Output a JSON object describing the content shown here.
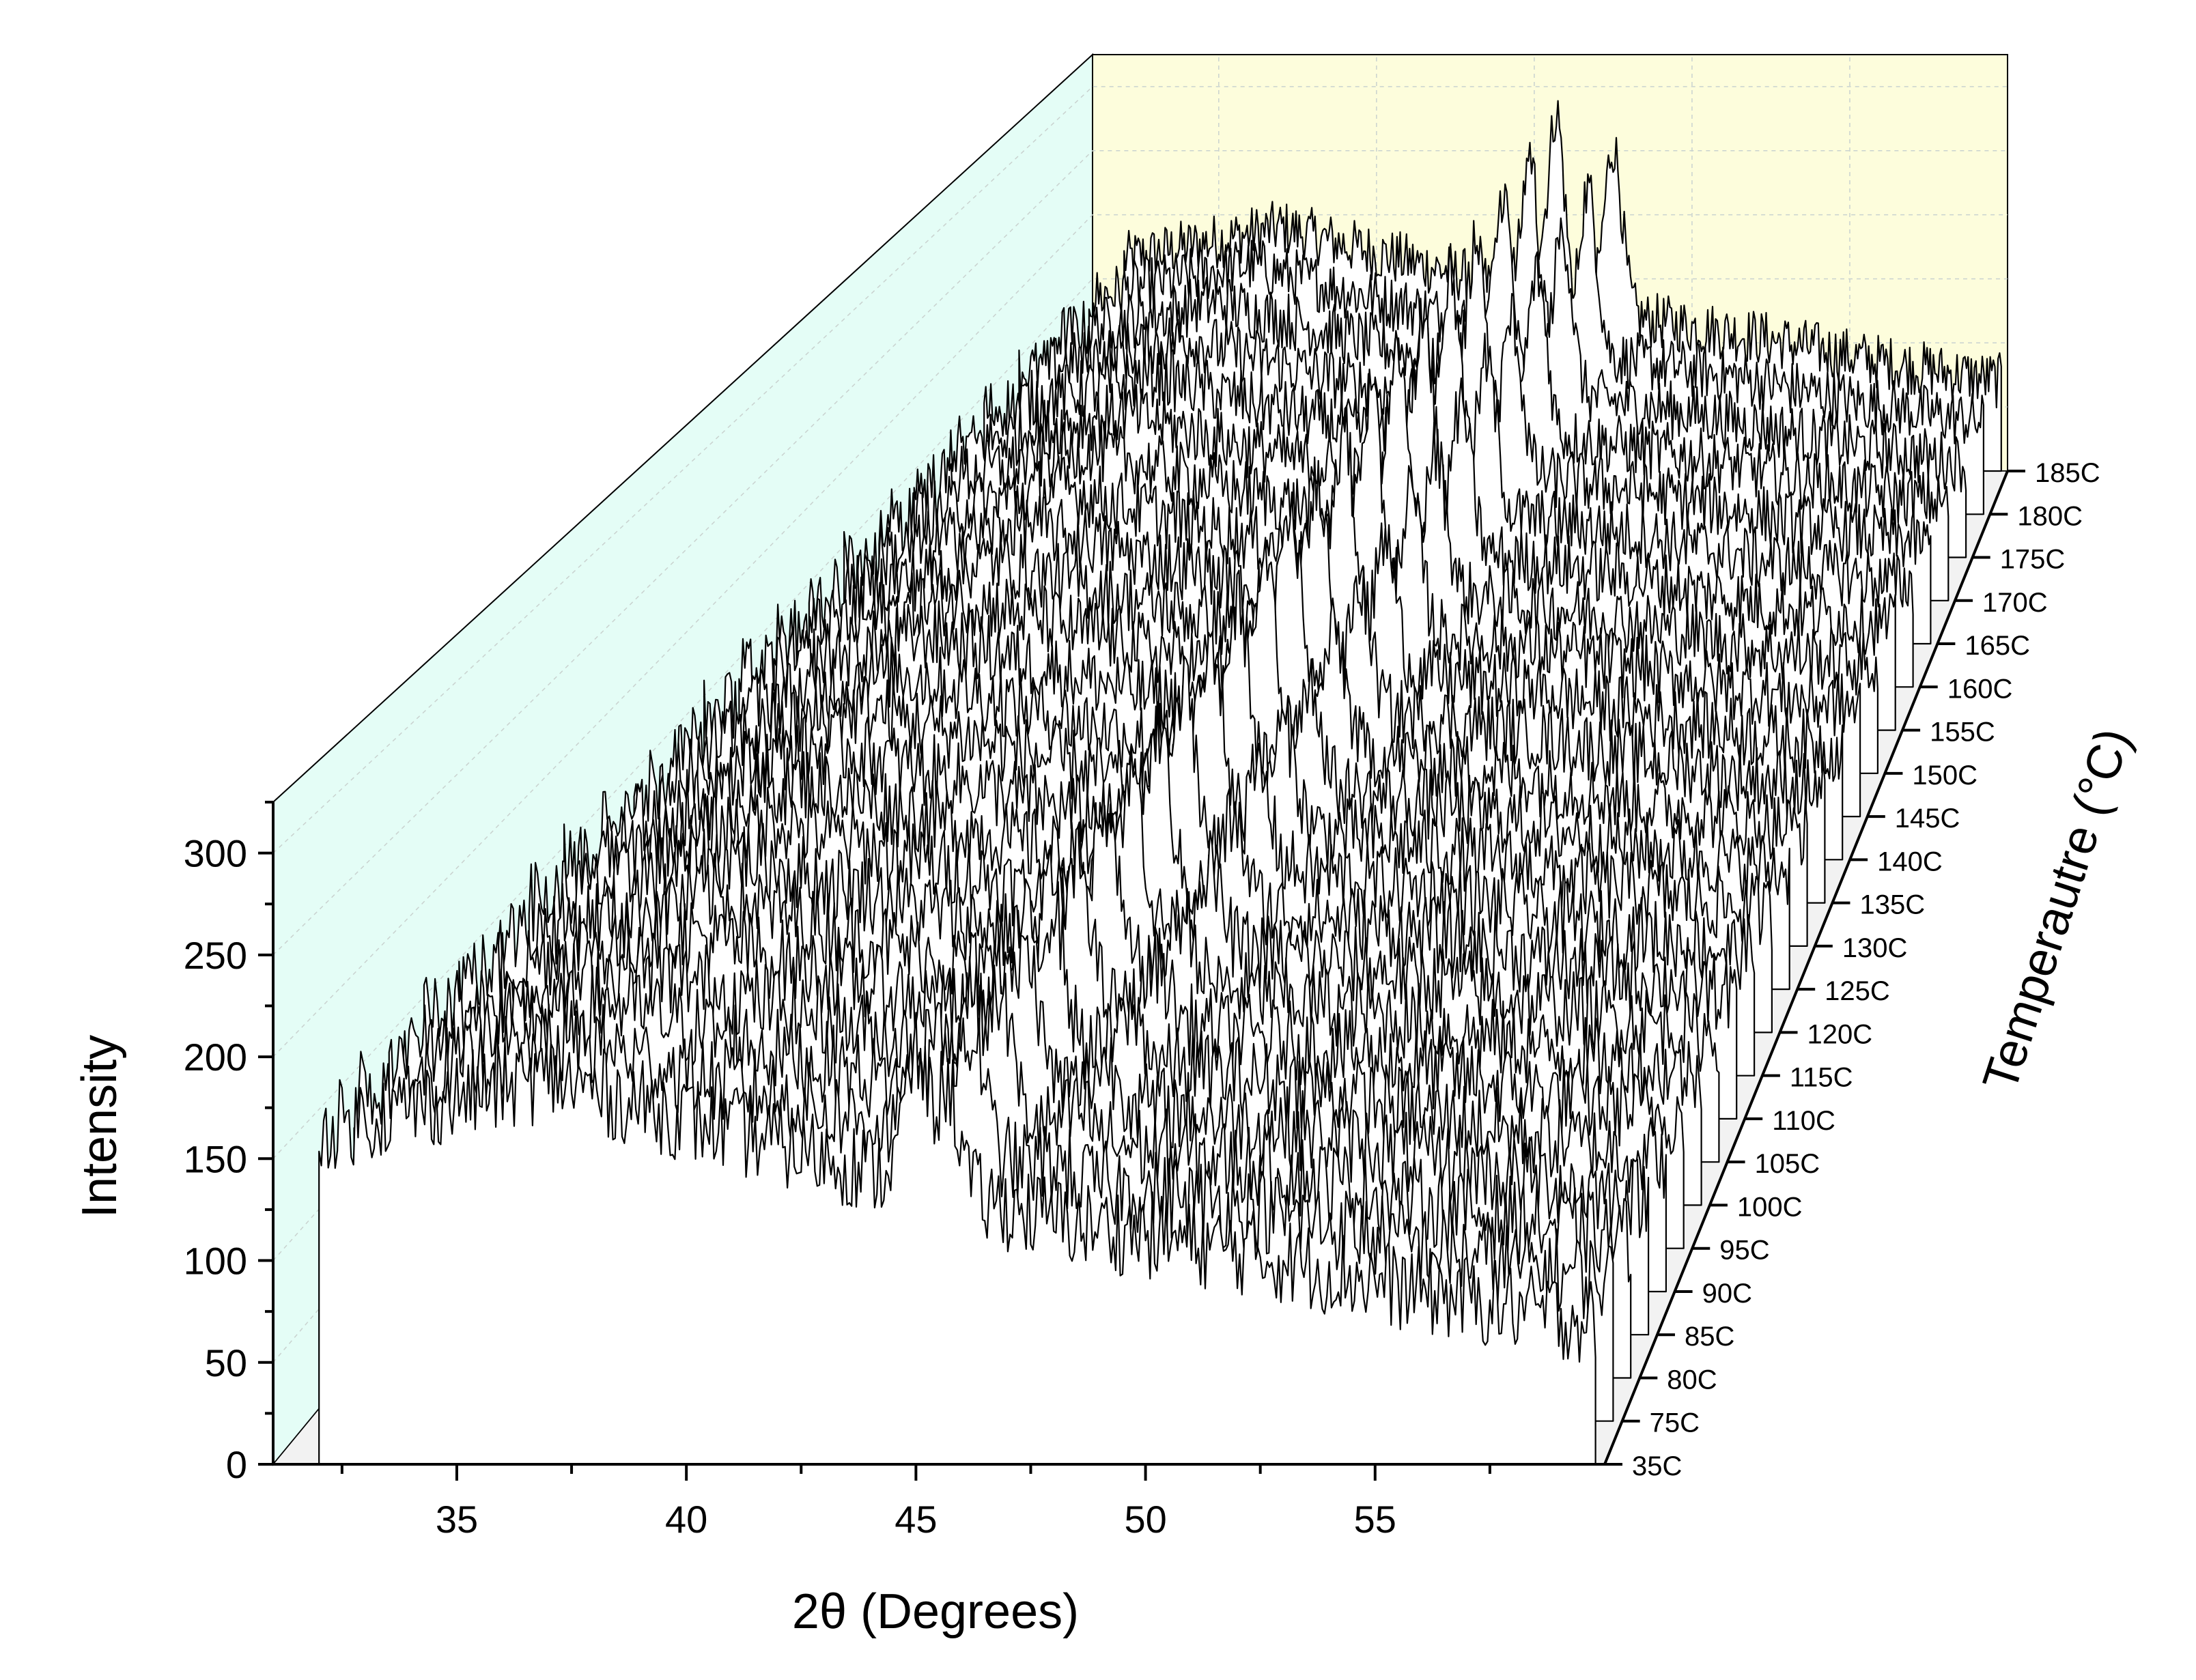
{
  "chart_data": {
    "type": "line",
    "subtype": "3d-waterfall",
    "title": "",
    "xlabel": "2θ (Degrees)",
    "ylabel": "Intensity",
    "zlabel": "Temperautre (°C)",
    "xlim": [
      31,
      60
    ],
    "ylim": [
      0,
      325
    ],
    "x_ticks": [
      "35",
      "40",
      "45",
      "50",
      "55"
    ],
    "y_ticks": [
      "0",
      "50",
      "100",
      "150",
      "200",
      "250",
      "300"
    ],
    "series_labels": [
      "35C",
      "75C",
      "80C",
      "85C",
      "90C",
      "95C",
      "100C",
      "105C",
      "110C",
      "115C",
      "120C",
      "125C",
      "130C",
      "135C",
      "140C",
      "145C",
      "150C",
      "155C",
      "160C",
      "165C",
      "170C",
      "175C",
      "180C",
      "185C"
    ],
    "profile": {
      "x_start": 32,
      "x_end": 59.8,
      "baseline": [
        {
          "x": 32,
          "y": 165
        },
        {
          "x": 37,
          "y": 190
        },
        {
          "x": 40,
          "y": 170
        },
        {
          "x": 44,
          "y": 145
        },
        {
          "x": 48,
          "y": 120
        },
        {
          "x": 52,
          "y": 105
        },
        {
          "x": 56,
          "y": 85
        },
        {
          "x": 59.8,
          "y": 70
        }
      ],
      "peaks": [
        {
          "center": 45.0,
          "height_start": 60,
          "height_end": 40,
          "width": 0.35
        },
        {
          "center": 45.7,
          "height_start": 50,
          "height_end": 145,
          "width": 0.35
        },
        {
          "center": 47.5,
          "height_start": 0,
          "height_end": 130,
          "width": 0.4
        }
      ],
      "noise_amplitude": 22
    },
    "grid": true,
    "legend": "none"
  },
  "colors": {
    "back_wall": "#fdfddc",
    "side_wall": "#e4fdf6",
    "floor": "#f2f2f2",
    "trace_line": "#000000",
    "trace_fill": "#ffffff"
  }
}
